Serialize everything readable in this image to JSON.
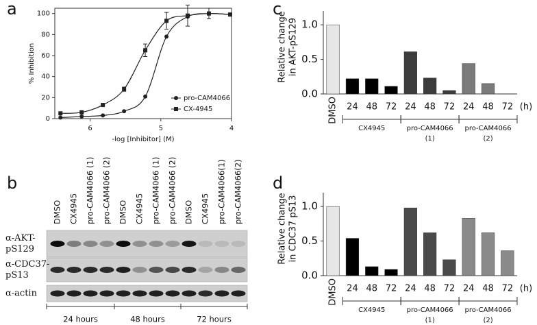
{
  "panel_labels": [
    "a",
    "b",
    "c",
    "d"
  ],
  "chart_data": [
    {
      "type": "line",
      "xlabel": "-log [Inhibitor] (M)",
      "ylabel": "% Inhibition",
      "xlim": [
        6.5,
        4
      ],
      "xticks": [
        6,
        5,
        4
      ],
      "ylim": [
        0,
        105
      ],
      "yticks": [
        0,
        20,
        40,
        60,
        80,
        100
      ],
      "legend": "lower right",
      "series": [
        {
          "name": "pro-CAM4066",
          "marker": "circle",
          "color": "#222222",
          "x": [
            6.42,
            6.12,
            5.82,
            5.52,
            5.22,
            4.92,
            4.62,
            4.32,
            4.02
          ],
          "values": [
            1,
            2,
            3,
            7,
            21,
            78,
            97,
            100,
            99
          ]
        },
        {
          "name": "CX-4945",
          "marker": "square",
          "color": "#222222",
          "x": [
            6.42,
            6.12,
            5.82,
            5.52,
            5.22,
            4.92,
            4.62,
            4.32,
            4.02
          ],
          "values": [
            5,
            6,
            13,
            28,
            65,
            93,
            98,
            100,
            99
          ],
          "errors": [
            null,
            null,
            null,
            2,
            6,
            8,
            10,
            5,
            null
          ]
        }
      ]
    },
    {
      "type": "bar",
      "ylabel": [
        "Relative change",
        "in AKT-pS129"
      ],
      "categories": [
        "DMSO",
        "24",
        "48",
        "72",
        "24",
        "48",
        "72",
        "24",
        "48",
        "72"
      ],
      "x_unit": "(h)",
      "values": [
        1.0,
        0.22,
        0.22,
        0.11,
        0.61,
        0.23,
        0.05,
        0.44,
        0.15,
        0
      ],
      "colors": [
        "#e6e6e6",
        "#000000",
        "#000000",
        "#000000",
        "#3c3c3c",
        "#3c3c3c",
        "#3c3c3c",
        "#7a7a7a",
        "#7a7a7a",
        "#7a7a7a"
      ],
      "ylim": [
        0,
        1.2
      ],
      "yticks": [
        {
          "value": 0,
          "label": "0.0"
        },
        {
          "value": 0.5,
          "label": "0.5"
        },
        {
          "value": 1,
          "label": "1.0"
        }
      ],
      "groups": [
        [
          "CX4945"
        ],
        [
          "pro-CAM4066",
          "(1)"
        ],
        [
          "pro-CAM4066",
          "(2)"
        ]
      ]
    },
    {
      "type": "bar",
      "ylabel": [
        "Relative change",
        "in CDC37 pS13"
      ],
      "categories": [
        "DMSO",
        "24",
        "48",
        "72",
        "24",
        "48",
        "72",
        "24",
        "48",
        "72"
      ],
      "x_unit": "(h)",
      "values": [
        1.0,
        0.54,
        0.13,
        0.09,
        0.98,
        0.62,
        0.23,
        0.83,
        0.62,
        0.36
      ],
      "colors": [
        "#e6e6e6",
        "#000000",
        "#000000",
        "#000000",
        "#4a4a4a",
        "#4a4a4a",
        "#4a4a4a",
        "#8a8a8a",
        "#8a8a8a",
        "#8a8a8a"
      ],
      "ylim": [
        0,
        1.2
      ],
      "yticks": [
        {
          "value": 0,
          "label": "0.0"
        },
        {
          "value": 0.5,
          "label": "0.5"
        },
        {
          "value": 1,
          "label": "1.0"
        }
      ],
      "groups": [
        [
          "CX4945"
        ],
        [
          "pro-CAM4066",
          "(1)"
        ],
        [
          "pro-CAM4066",
          "(2)"
        ]
      ]
    }
  ],
  "blot": {
    "lanes": [
      "DMSO",
      "CX4945",
      "pro-CAM4066 (1)",
      "pro-CAM4066 (2)",
      "DMSO",
      "CX4945",
      "pro-CAM4066 (1)",
      "pro-CAM4066 (2)",
      "DMSO",
      "CX4945",
      "pro-CAM4066(1)",
      "pro-CAM4066(2)"
    ],
    "rows": [
      {
        "label": [
          "α-AKT-",
          "pS129"
        ],
        "bands": [
          0.95,
          0.4,
          0.35,
          0.3,
          0.95,
          0.3,
          0.3,
          0.25,
          0.9,
          0.1,
          0.1,
          0.1
        ]
      },
      {
        "label": [
          "α-CDC37-",
          "pS13"
        ],
        "bands": [
          0.8,
          0.8,
          0.8,
          0.8,
          0.85,
          0.3,
          0.6,
          0.65,
          0.8,
          0.2,
          0.35,
          0.5
        ]
      },
      {
        "label": [
          "α-actin"
        ],
        "bands": [
          0.85,
          0.85,
          0.85,
          0.85,
          0.85,
          0.85,
          0.85,
          0.85,
          0.85,
          0.8,
          0.85,
          0.85
        ]
      }
    ],
    "times": [
      "24 hours",
      "48 hours",
      "72 hours"
    ]
  }
}
